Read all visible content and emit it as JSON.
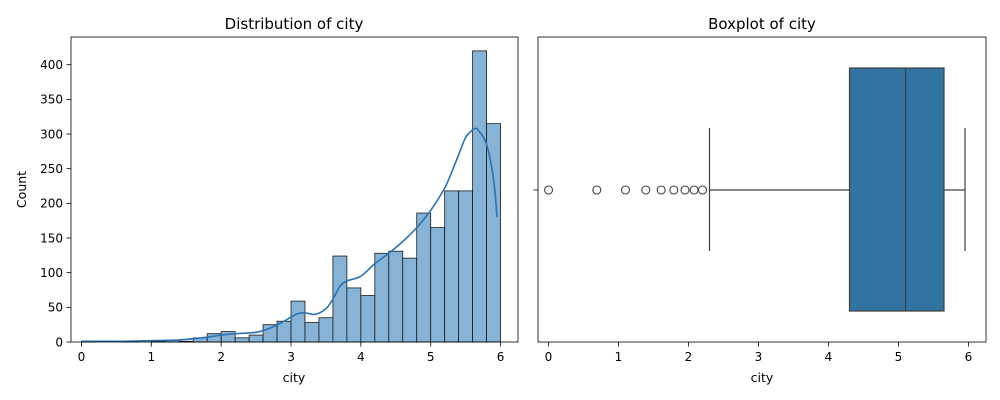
{
  "colors": {
    "hist_fill": "#87b3d6",
    "hist_edge": "#1a1a1a",
    "kde_line": "#2a73b4",
    "box_fill": "#3274a1",
    "box_edge": "#404040"
  },
  "chart_data": [
    {
      "type": "histogram",
      "title": "Distribution of city",
      "xlabel": "city",
      "ylabel": "Count",
      "xlim": [
        -0.15,
        6.25
      ],
      "ylim": [
        0,
        440
      ],
      "xticks": [
        0,
        1,
        2,
        3,
        4,
        5,
        6
      ],
      "yticks": [
        0,
        50,
        100,
        150,
        200,
        250,
        300,
        350,
        400
      ],
      "bin_width": 0.2,
      "bins": [
        {
          "x0": 0.0,
          "x1": 0.2,
          "count": 1
        },
        {
          "x0": 0.2,
          "x1": 0.4,
          "count": 0
        },
        {
          "x0": 0.4,
          "x1": 0.6,
          "count": 0
        },
        {
          "x0": 0.6,
          "x1": 0.8,
          "count": 1
        },
        {
          "x0": 0.8,
          "x1": 1.0,
          "count": 0
        },
        {
          "x0": 1.0,
          "x1": 1.2,
          "count": 1
        },
        {
          "x0": 1.2,
          "x1": 1.4,
          "count": 3
        },
        {
          "x0": 1.4,
          "x1": 1.6,
          "count": 1
        },
        {
          "x0": 1.6,
          "x1": 1.8,
          "count": 6
        },
        {
          "x0": 1.8,
          "x1": 2.0,
          "count": 12
        },
        {
          "x0": 2.0,
          "x1": 2.2,
          "count": 15
        },
        {
          "x0": 2.2,
          "x1": 2.4,
          "count": 6
        },
        {
          "x0": 2.4,
          "x1": 2.6,
          "count": 10
        },
        {
          "x0": 2.6,
          "x1": 2.8,
          "count": 25
        },
        {
          "x0": 2.8,
          "x1": 3.0,
          "count": 30
        },
        {
          "x0": 3.0,
          "x1": 3.2,
          "count": 59
        },
        {
          "x0": 3.2,
          "x1": 3.4,
          "count": 28
        },
        {
          "x0": 3.4,
          "x1": 3.6,
          "count": 35
        },
        {
          "x0": 3.6,
          "x1": 3.8,
          "count": 124
        },
        {
          "x0": 3.8,
          "x1": 4.0,
          "count": 78
        },
        {
          "x0": 4.0,
          "x1": 4.2,
          "count": 67
        },
        {
          "x0": 4.2,
          "x1": 4.4,
          "count": 128
        },
        {
          "x0": 4.4,
          "x1": 4.6,
          "count": 131
        },
        {
          "x0": 4.6,
          "x1": 4.8,
          "count": 121
        },
        {
          "x0": 4.8,
          "x1": 5.0,
          "count": 186
        },
        {
          "x0": 5.0,
          "x1": 5.2,
          "count": 165
        },
        {
          "x0": 5.2,
          "x1": 5.4,
          "count": 218
        },
        {
          "x0": 5.4,
          "x1": 5.6,
          "count": 218
        },
        {
          "x0": 5.6,
          "x1": 5.8,
          "count": 420
        },
        {
          "x0": 5.8,
          "x1": 6.0,
          "count": 315
        }
      ],
      "kde": {
        "x": [
          0.0,
          0.5,
          1.0,
          1.4,
          1.8,
          2.0,
          2.2,
          2.5,
          2.7,
          2.9,
          3.0,
          3.1,
          3.2,
          3.35,
          3.5,
          3.6,
          3.7,
          3.8,
          4.0,
          4.2,
          4.4,
          4.6,
          4.8,
          5.0,
          5.2,
          5.3,
          5.4,
          5.5,
          5.6,
          5.65,
          5.7,
          5.8,
          5.9,
          5.95
        ],
        "y": [
          1,
          1,
          2,
          3,
          7,
          10,
          12,
          14,
          20,
          30,
          36,
          41,
          42,
          40,
          48,
          62,
          80,
          88,
          95,
          113,
          128,
          145,
          165,
          190,
          222,
          245,
          270,
          295,
          306,
          308,
          303,
          285,
          235,
          180
        ]
      }
    },
    {
      "type": "boxplot",
      "title": "Boxplot of city",
      "xlabel": "city",
      "xlim": [
        -0.15,
        6.25
      ],
      "xticks": [
        0,
        1,
        2,
        3,
        4,
        5,
        6
      ],
      "ytick_labels": [
        ""
      ],
      "q1": 4.3,
      "median": 5.1,
      "q3": 5.65,
      "whisker_low": 2.3,
      "whisker_high": 5.95,
      "outliers": [
        0.0,
        0.69,
        1.1,
        1.39,
        1.61,
        1.79,
        1.95,
        2.08,
        2.2
      ]
    }
  ]
}
